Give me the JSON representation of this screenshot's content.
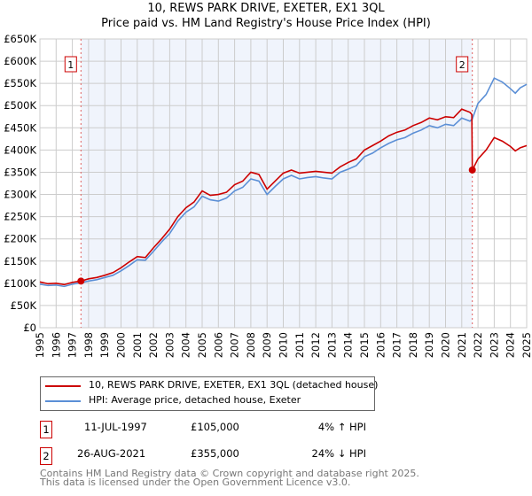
{
  "chart_data": {
    "type": "line",
    "title": "10, REWS PARK DRIVE, EXETER, EX1 3QL",
    "subtitle": "Price paid vs. HM Land Registry's House Price Index (HPI)",
    "xlim": [
      1995,
      2025
    ],
    "ylim": [
      0,
      650000
    ],
    "y_ticks": [
      "£0",
      "£50K",
      "£100K",
      "£150K",
      "£200K",
      "£250K",
      "£300K",
      "£350K",
      "£400K",
      "£450K",
      "£500K",
      "£550K",
      "£600K",
      "£650K"
    ],
    "x_ticks": [
      "1995",
      "1996",
      "1997",
      "1998",
      "1999",
      "2000",
      "2001",
      "2002",
      "2003",
      "2004",
      "2005",
      "2006",
      "2007",
      "2008",
      "2009",
      "2010",
      "2011",
      "2012",
      "2013",
      "2014",
      "2015",
      "2016",
      "2017",
      "2018",
      "2019",
      "2020",
      "2021",
      "2022",
      "2023",
      "2024",
      "2025"
    ],
    "grid": true,
    "series": [
      {
        "name": "10, REWS PARK DRIVE, EXETER, EX1 3QL (detached house)",
        "color": "#cc0000",
        "x": [
          1995,
          1995.5,
          1996,
          1996.5,
          1997,
          1997.53,
          1998,
          1998.5,
          1999,
          1999.5,
          2000,
          2000.5,
          2001,
          2001.5,
          2002,
          2002.5,
          2003,
          2003.5,
          2004,
          2004.5,
          2005,
          2005.5,
          2006,
          2006.5,
          2007,
          2007.5,
          2008,
          2008.5,
          2009,
          2009.5,
          2010,
          2010.5,
          2011,
          2011.5,
          2012,
          2012.5,
          2013,
          2013.5,
          2014,
          2014.5,
          2015,
          2015.5,
          2016,
          2016.5,
          2017,
          2017.5,
          2018,
          2018.5,
          2019,
          2019.5,
          2020,
          2020.5,
          2021,
          2021.5,
          2021.62,
          2021.65,
          2022,
          2022.5,
          2023,
          2023.5,
          2024,
          2024.3,
          2024.6,
          2025
        ],
        "y": [
          103000,
          99000,
          100000,
          97000,
          102000,
          105000,
          110000,
          113000,
          118000,
          124000,
          135000,
          148000,
          160000,
          158000,
          180000,
          200000,
          222000,
          250000,
          270000,
          283000,
          308000,
          298000,
          300000,
          305000,
          322000,
          330000,
          350000,
          345000,
          312000,
          330000,
          348000,
          355000,
          348000,
          350000,
          352000,
          350000,
          348000,
          362000,
          372000,
          380000,
          400000,
          410000,
          420000,
          432000,
          440000,
          445000,
          455000,
          462000,
          472000,
          468000,
          475000,
          473000,
          492000,
          485000,
          480000,
          355000,
          380000,
          400000,
          428000,
          420000,
          408000,
          398000,
          405000,
          410000
        ]
      },
      {
        "name": "HPI: Average price, detached house, Exeter",
        "color": "#5b8fd6",
        "x": [
          1995,
          1995.5,
          1996,
          1996.5,
          1997,
          1997.5,
          1998,
          1998.5,
          1999,
          1999.5,
          2000,
          2000.5,
          2001,
          2001.5,
          2002,
          2002.5,
          2003,
          2003.5,
          2004,
          2004.5,
          2005,
          2005.5,
          2006,
          2006.5,
          2007,
          2007.5,
          2008,
          2008.5,
          2009,
          2009.5,
          2010,
          2010.5,
          2011,
          2011.5,
          2012,
          2012.5,
          2013,
          2013.5,
          2014,
          2014.5,
          2015,
          2015.5,
          2016,
          2016.5,
          2017,
          2017.5,
          2018,
          2018.5,
          2019,
          2019.5,
          2020,
          2020.5,
          2021,
          2021.5,
          2021.65,
          2022,
          2022.5,
          2023,
          2023.5,
          2024,
          2024.3,
          2024.6,
          2025
        ],
        "y": [
          98000,
          95000,
          96000,
          93000,
          98000,
          101000,
          105000,
          108000,
          113000,
          118000,
          128000,
          140000,
          153000,
          152000,
          172000,
          193000,
          212000,
          240000,
          260000,
          272000,
          296000,
          288000,
          285000,
          292000,
          308000,
          316000,
          335000,
          330000,
          300000,
          318000,
          335000,
          343000,
          335000,
          338000,
          340000,
          337000,
          335000,
          350000,
          357000,
          365000,
          385000,
          393000,
          405000,
          415000,
          423000,
          428000,
          438000,
          445000,
          455000,
          450000,
          458000,
          455000,
          472000,
          465000,
          470000,
          505000,
          525000,
          562000,
          553000,
          538000,
          528000,
          540000,
          548000
        ]
      }
    ],
    "annotations": [
      {
        "label": "1",
        "x": 1997.53,
        "y": 105000
      },
      {
        "label": "2",
        "x": 2021.65,
        "y": 355000
      }
    ],
    "shaded_range": [
      1997.53,
      2021.65
    ]
  },
  "legend": {
    "items": [
      "10, REWS PARK DRIVE, EXETER, EX1 3QL (detached house)",
      "HPI: Average price, detached house, Exeter"
    ]
  },
  "transactions": [
    {
      "num": "1",
      "date": "11-JUL-1997",
      "price": "£105,000",
      "hpi": "4% ↑ HPI"
    },
    {
      "num": "2",
      "date": "26-AUG-2021",
      "price": "£355,000",
      "hpi": "24% ↓ HPI"
    }
  ],
  "footer": {
    "line1": "Contains HM Land Registry data © Crown copyright and database right 2025.",
    "line2": "This data is licensed under the Open Government Licence v3.0."
  }
}
